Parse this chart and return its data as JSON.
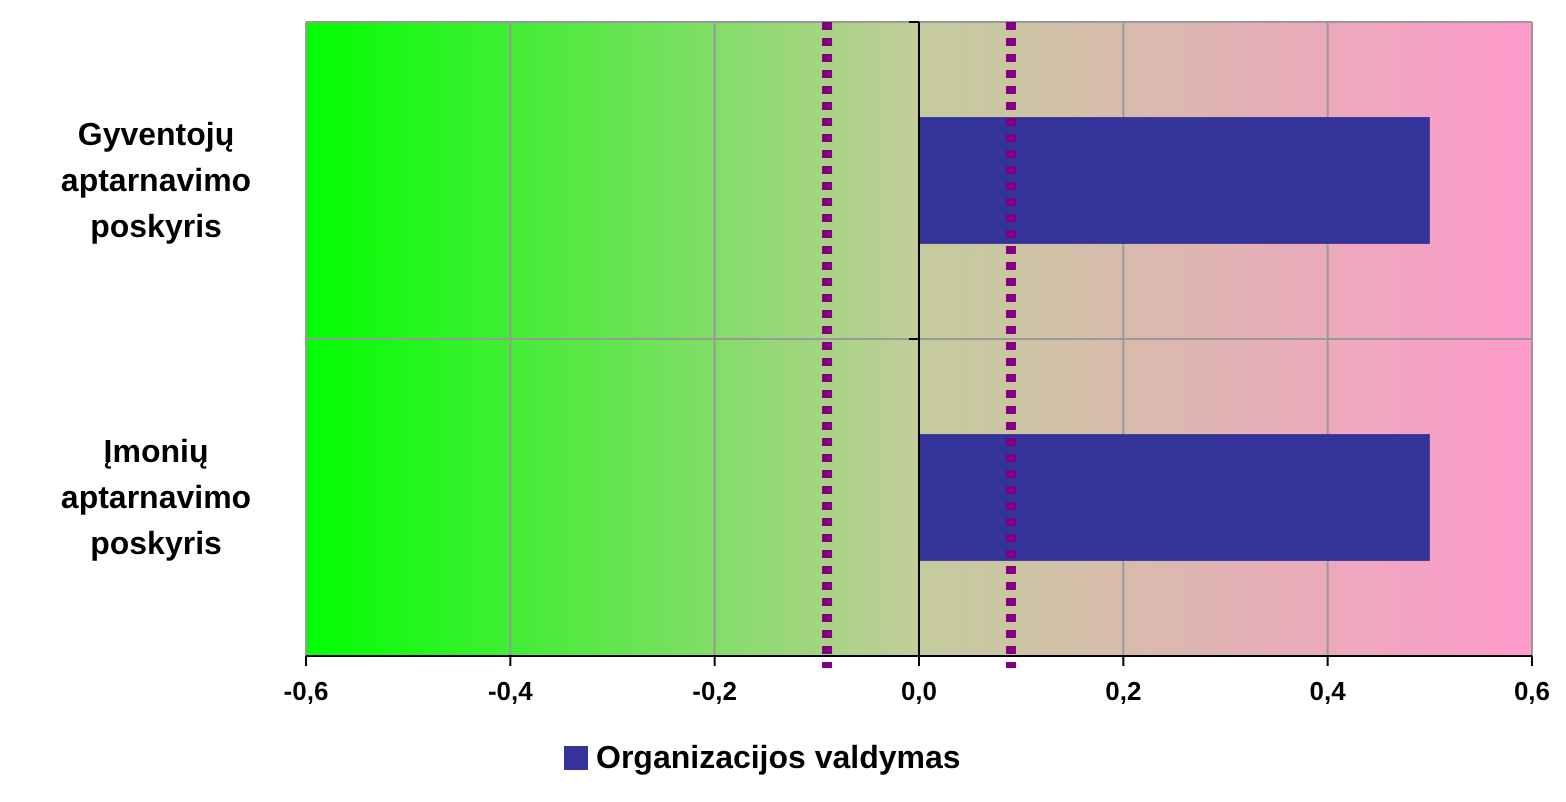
{
  "chart_data": {
    "type": "bar",
    "orientation": "horizontal",
    "categories": [
      "Gyventojų aptarnavimo poskyris",
      "Įmonių aptarnavimo poskyris"
    ],
    "series": [
      {
        "name": "Organizacijos valdymas",
        "color": "#333399",
        "values": [
          0.5,
          0.5
        ]
      }
    ],
    "xlim": [
      -0.6,
      0.6
    ],
    "xticks": [
      {
        "value": -0.6,
        "label": "-0,6"
      },
      {
        "value": -0.4,
        "label": "-0,4"
      },
      {
        "value": -0.2,
        "label": "-0,2"
      },
      {
        "value": 0,
        "label": "0,0"
      },
      {
        "value": 0.2,
        "label": "0,2"
      },
      {
        "value": 0.4,
        "label": "0,4"
      },
      {
        "value": 0.6,
        "label": "0,6"
      }
    ],
    "ref_lines": [
      {
        "axis": "x",
        "value": -0.09,
        "color": "#800080",
        "line_style": "dotted"
      },
      {
        "axis": "x",
        "value": 0.09,
        "color": "#800080",
        "line_style": "dotted"
      }
    ],
    "grid": true,
    "legend": "bottom"
  }
}
